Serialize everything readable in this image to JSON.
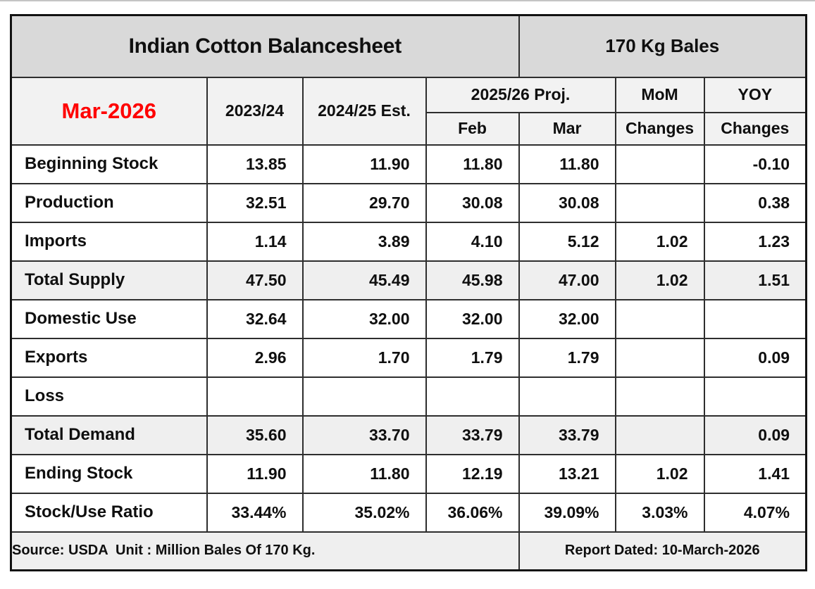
{
  "table": {
    "title": "Indian Cotton Balancesheet",
    "unit_header": "170 Kg Bales",
    "month_label": "Mar-2026",
    "col_2023_24": "2023/24",
    "col_2024_25": "2024/25 Est.",
    "proj_group": "2025/26 Proj.",
    "col_feb": "Feb",
    "col_mar": "Mar",
    "mom_group": "MoM",
    "yoy_group": "YOY",
    "mom_sub": "Changes",
    "yoy_sub": "Changes",
    "rows": [
      {
        "label": "Beginning Stock",
        "values": [
          "13.85",
          "11.90",
          "11.80",
          "11.80",
          "",
          "-0.10"
        ],
        "highlight": false
      },
      {
        "label": "Production",
        "values": [
          "32.51",
          "29.70",
          "30.08",
          "30.08",
          "",
          "0.38"
        ],
        "highlight": false
      },
      {
        "label": "Imports",
        "values": [
          "1.14",
          "3.89",
          "4.10",
          "5.12",
          "1.02",
          "1.23"
        ],
        "highlight": false
      },
      {
        "label": "Total Supply",
        "values": [
          "47.50",
          "45.49",
          "45.98",
          "47.00",
          "1.02",
          "1.51"
        ],
        "highlight": true
      },
      {
        "label": "Domestic Use",
        "values": [
          "32.64",
          "32.00",
          "32.00",
          "32.00",
          "",
          ""
        ],
        "highlight": false
      },
      {
        "label": "Exports",
        "values": [
          "2.96",
          "1.70",
          "1.79",
          "1.79",
          "",
          "0.09"
        ],
        "highlight": false
      },
      {
        "label": "Loss",
        "values": [
          "",
          "",
          "",
          "",
          "",
          ""
        ],
        "highlight": false
      },
      {
        "label": "Total Demand",
        "values": [
          "35.60",
          "33.70",
          "33.79",
          "33.79",
          "",
          "0.09"
        ],
        "highlight": true
      },
      {
        "label": "Ending Stock",
        "values": [
          "11.90",
          "11.80",
          "12.19",
          "13.21",
          "1.02",
          "1.41"
        ],
        "highlight": false
      },
      {
        "label": "Stock/Use Ratio",
        "values": [
          "33.44%",
          "35.02%",
          "36.06%",
          "39.09%",
          "3.03%",
          "4.07%"
        ],
        "highlight": false
      }
    ],
    "footer_source": "Source: USDA  Unit : Million Bales Of 170 Kg.",
    "footer_report_date": "Report Dated: 10-March-2026"
  },
  "colors": {
    "title_bg": "#d9d9d9",
    "header_bg": "#f2f2f2",
    "highlight_bg": "#efefef",
    "month_text": "#ff0000",
    "border": "#2e2e2e"
  }
}
